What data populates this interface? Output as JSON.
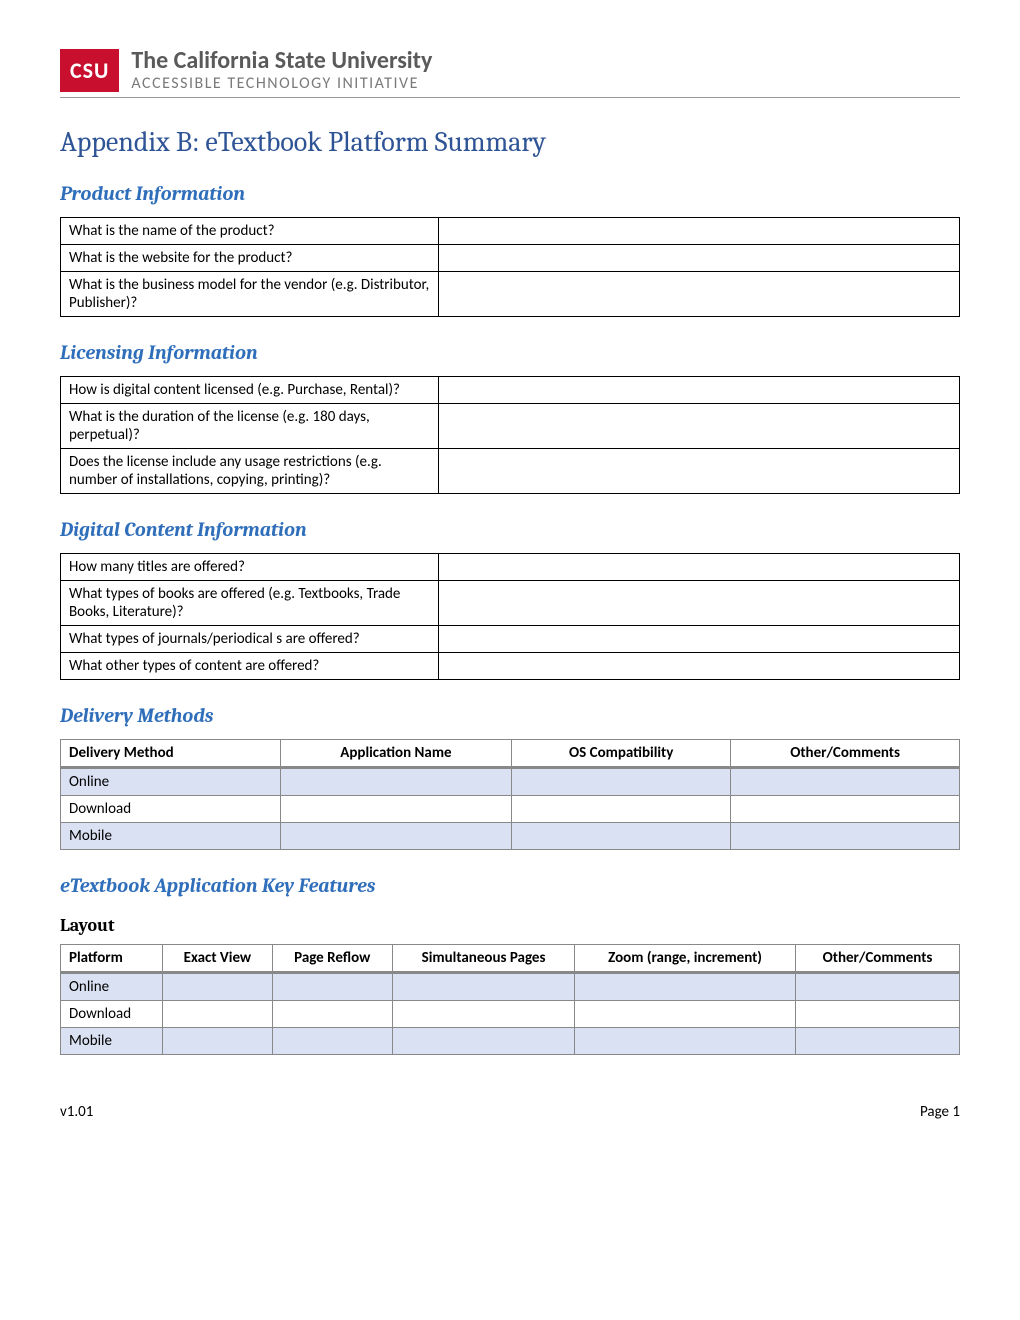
{
  "header": {
    "logo_text": "CSU",
    "title": "The California State University",
    "subtitle": "ACCESSIBLE TECHNOLOGY INITIATIVE"
  },
  "page_title": "Appendix B: eTextbook Platform Summary",
  "sections": {
    "product_info": {
      "heading": "Product Information",
      "rows": [
        "What is the name of the product?",
        "What is the website for the product?",
        "What is the business model for the vendor (e.g. Distributor, Publisher)?"
      ]
    },
    "licensing_info": {
      "heading": "Licensing Information",
      "rows": [
        "How is digital content licensed (e.g. Purchase, Rental)?",
        "What is the duration of the license (e.g. 180 days, perpetual)?",
        "Does the license include any usage restrictions (e.g. number of installations, copying, printing)?"
      ]
    },
    "digital_content": {
      "heading": "Digital Content Information",
      "rows": [
        "How many titles are offered?",
        "What types of books are offered (e.g. Textbooks, Trade Books, Literature)?",
        "What types of journals/periodical s are offered?",
        "What other types of content are offered?"
      ]
    },
    "delivery_methods": {
      "heading": "Delivery Methods",
      "columns": [
        "Delivery Method",
        "Application Name",
        "OS Compatibility",
        "Other/Comments"
      ],
      "rows": [
        "Online",
        "Download",
        "Mobile"
      ]
    },
    "key_features": {
      "heading": "eTextbook Application Key Features",
      "layout": {
        "subheading": "Layout",
        "columns": [
          "Platform",
          "Exact View",
          "Page Reflow",
          "Simultaneous Pages",
          "Zoom (range, increment)",
          "Other/Comments"
        ],
        "rows": [
          "Online",
          "Download",
          "Mobile"
        ]
      }
    }
  },
  "footer": {
    "version": "v1.01",
    "page": "Page 1"
  }
}
